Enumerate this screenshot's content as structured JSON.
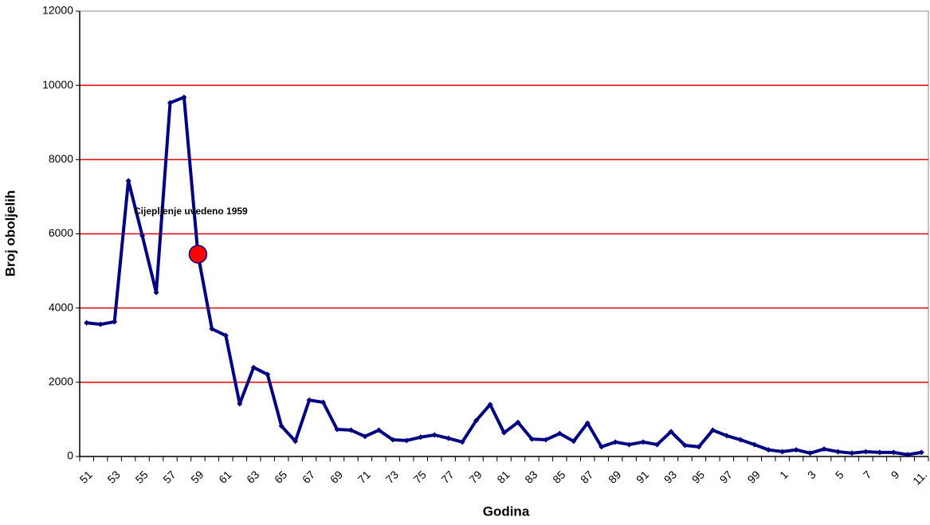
{
  "chart_data": {
    "type": "line",
    "xlabel": "Godina",
    "ylabel": "Broj oboljelih",
    "categories": [
      "51",
      null,
      "53",
      null,
      "55",
      null,
      "57",
      null,
      "59",
      null,
      "61",
      null,
      "63",
      null,
      "65",
      null,
      "67",
      null,
      "69",
      null,
      "71",
      null,
      "73",
      null,
      "75",
      null,
      "77",
      null,
      "79",
      null,
      "81",
      null,
      "83",
      null,
      "85",
      null,
      "87",
      null,
      "89",
      null,
      "91",
      null,
      "93",
      null,
      "95",
      null,
      "97",
      null,
      "99",
      null,
      "1",
      null,
      "3",
      null,
      "5",
      null,
      "7",
      null,
      "9",
      null,
      "11."
    ],
    "series": [
      {
        "name": "Broj oboljelih",
        "color": "#000080",
        "values": [
          3600,
          3560,
          3630,
          7430,
          5950,
          4420,
          9530,
          9680,
          5450,
          3440,
          3260,
          1420,
          2400,
          2210,
          820,
          410,
          1520,
          1460,
          730,
          710,
          540,
          710,
          450,
          430,
          520,
          580,
          490,
          390,
          970,
          1400,
          640,
          920,
          470,
          450,
          620,
          410,
          900,
          260,
          390,
          320,
          390,
          320,
          670,
          300,
          260,
          710,
          560,
          450,
          320,
          180,
          130,
          180,
          90,
          200,
          130,
          90,
          130,
          110,
          110,
          50,
          110
        ]
      }
    ],
    "ylim": [
      0,
      12000
    ],
    "yticks": [
      0,
      2000,
      4000,
      6000,
      8000,
      10000,
      12000
    ],
    "grid": true,
    "grid_color": "#e00000",
    "annotation": {
      "text": "Cijepljenje uvedeno 1959",
      "x": "59",
      "y": 5450,
      "color": "#ff0000"
    }
  }
}
